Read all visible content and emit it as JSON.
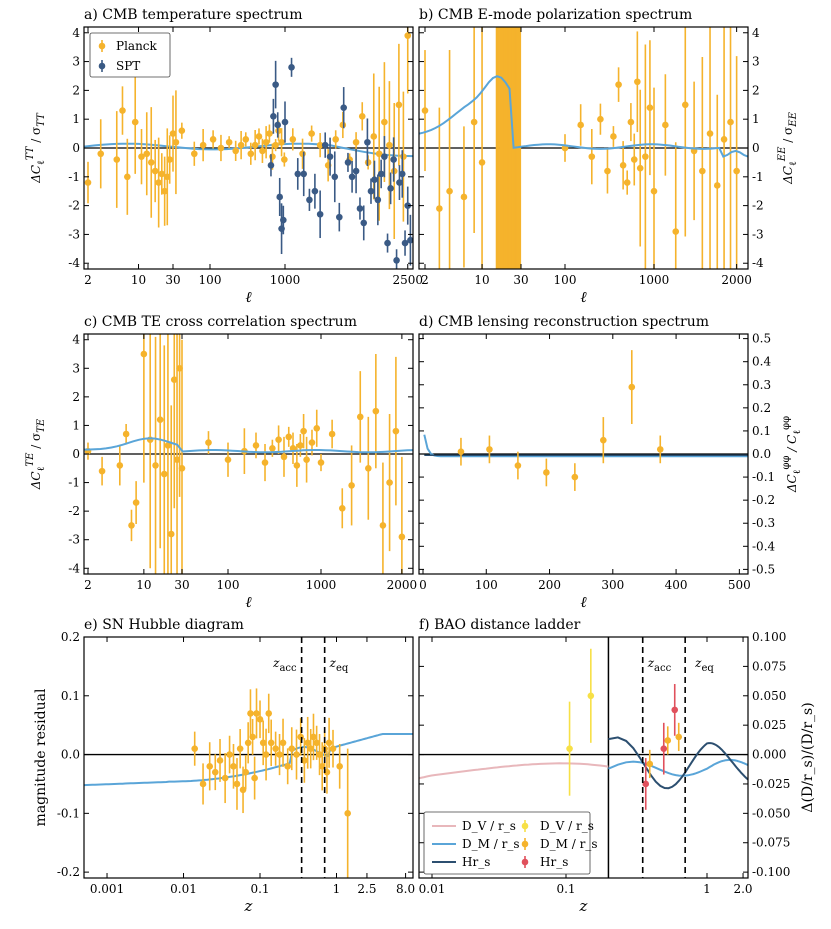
{
  "colors": {
    "planck": "#f5b32c",
    "spt": "#3a5a85",
    "model": "#5aa5d8",
    "dark": "#2c4f70",
    "dv": "#e8b7bb",
    "dvpt": "#f7e046",
    "hrpt": "#e0505c"
  },
  "chart_data": [
    {
      "id": "a",
      "type": "scatter",
      "title": "a) CMB temperature spectrum",
      "xlabel": "ℓ",
      "ylabel": "ΔC_ℓ^TT / σ_TT",
      "xticks": [
        "2",
        "10",
        "30",
        "100",
        "1000",
        "2500"
      ],
      "yticks": [
        "4",
        "3",
        "2",
        "1",
        "0",
        "-1",
        "-2",
        "-3",
        "-4"
      ],
      "ylim": [
        -4.2,
        4.2
      ],
      "legend": [
        "Planck",
        "SPT"
      ],
      "series": [
        {
          "name": "Planck",
          "x": [
            2,
            3,
            5,
            6,
            7,
            9,
            11,
            13,
            15,
            17,
            19,
            21,
            23,
            25,
            27,
            30,
            33,
            40,
            60,
            80,
            110,
            140,
            180,
            220,
            260,
            300,
            350,
            400,
            450,
            500,
            560,
            620,
            680,
            750,
            820,
            900,
            980,
            1060,
            1140,
            1220,
            1300,
            1380,
            1460,
            1540,
            1620,
            1700,
            1780,
            1860,
            1940,
            2020,
            2100,
            2180,
            2260,
            2340,
            2420,
            2500
          ],
          "y": [
            -1.2,
            -0.2,
            -0.4,
            1.3,
            -1.0,
            0.9,
            -0.3,
            -0.2,
            -0.5,
            -0.8,
            -1.2,
            -0.9,
            -1.5,
            -1.0,
            -0.4,
            0.5,
            0.2,
            0.6,
            -0.2,
            0.1,
            0.3,
            0.0,
            0.2,
            -0.1,
            0.1,
            0.3,
            -0.2,
            0.1,
            0.4,
            -0.1,
            0.2,
            0.5,
            -0.3,
            0.1,
            0.6,
            0.2,
            -0.4,
            0.3,
            -0.2,
            0.5,
            0.1,
            -0.6,
            0.3,
            0.8,
            -0.4,
            0.2,
            1.1,
            -0.5,
            0.4,
            -0.2,
            0.9,
            0.1,
            -0.8,
            1.5,
            -0.3,
            3.9
          ]
        },
        {
          "name": "SPT",
          "x": [
            650,
            700,
            750,
            800,
            850,
            900,
            950,
            1000,
            1050,
            1100,
            1150,
            1200,
            1250,
            1300,
            1350,
            1400,
            1450,
            1500,
            1550,
            1600,
            1650,
            1700,
            1750,
            1800,
            1850,
            1900,
            1950,
            2000,
            2050,
            2100,
            2150,
            2200,
            2250,
            2300,
            2350,
            2400,
            2450,
            2500,
            2550
          ],
          "y": [
            -0.6,
            1.1,
            2.2,
            0.8,
            -1.7,
            -2.8,
            -2.5,
            0.9,
            2.8,
            -0.9,
            -0.9,
            -1.8,
            -1.5,
            -2.3,
            0.1,
            -0.3,
            -1.0,
            -2.4,
            1.4,
            -0.5,
            -1.0,
            -0.8,
            -2.1,
            -2.6,
            0.2,
            -1.5,
            -1.1,
            -1.8,
            -0.9,
            -0.3,
            -3.3,
            -1.4,
            -0.4,
            -3.9,
            -1.2,
            -0.9,
            -3.3,
            -2.0,
            -3.2
          ]
        }
      ]
    },
    {
      "id": "b",
      "type": "scatter",
      "title": "b) CMB E-mode polarization spectrum",
      "xlabel": "ℓ",
      "ylabel": "ΔC_ℓ^EE / σ_EE",
      "xticks": [
        "2",
        "10",
        "30",
        "100",
        "1000",
        "2000"
      ],
      "yticks": [
        "4",
        "3",
        "2",
        "1",
        "0",
        "-1",
        "-2",
        "-3",
        "-4"
      ],
      "ylim": [
        -4.2,
        4.2
      ],
      "series": [
        {
          "name": "Planck",
          "x": [
            2,
            3,
            4,
            6,
            8,
            10,
            100,
            150,
            200,
            250,
            300,
            350,
            400,
            450,
            500,
            550,
            600,
            650,
            700,
            800,
            900,
            1000,
            1100,
            1200,
            1300,
            1400,
            1500,
            1600,
            1700,
            1800,
            1900,
            2000
          ],
          "y": [
            1.3,
            -2.1,
            -1.5,
            -1.7,
            0.9,
            -0.5,
            0.0,
            0.8,
            -0.3,
            1.0,
            -0.8,
            0.4,
            2.2,
            -0.6,
            -1.2,
            0.9,
            -0.4,
            2.3,
            -0.7,
            -0.3,
            1.4,
            -1.5,
            0.8,
            -2.9,
            1.5,
            -0.1,
            -0.8,
            0.5,
            -1.3,
            0.3,
            0.9,
            -0.8
          ]
        }
      ]
    },
    {
      "id": "c",
      "type": "scatter",
      "title": "c) CMB TE cross correlation spectrum",
      "xlabel": "ℓ",
      "ylabel": "ΔC_ℓ^TE / σ_TE",
      "xticks": [
        "2",
        "10",
        "30",
        "100",
        "1000",
        "2000"
      ],
      "yticks": [
        "4",
        "3",
        "2",
        "1",
        "0",
        "-1",
        "-2",
        "-3",
        "-4"
      ],
      "ylim": [
        -4.2,
        4.2
      ],
      "series": [
        {
          "name": "Planck",
          "x": [
            2,
            3,
            5,
            6,
            7,
            8,
            10,
            12,
            14,
            16,
            18,
            20,
            22,
            24,
            26,
            28,
            30,
            60,
            100,
            150,
            200,
            250,
            300,
            350,
            400,
            450,
            500,
            550,
            600,
            650,
            700,
            800,
            900,
            1000,
            1100,
            1200,
            1300,
            1400,
            1500,
            1600,
            1700,
            1800,
            1900,
            2000
          ],
          "y": [
            0.1,
            -0.6,
            -0.4,
            0.7,
            -2.5,
            -1.7,
            3.5,
            0.5,
            -0.4,
            1.2,
            -0.7,
            0.3,
            -2.8,
            2.6,
            -0.2,
            3.0,
            -0.5,
            0.4,
            -0.2,
            0.1,
            0.3,
            -0.3,
            0.2,
            0.5,
            -0.1,
            0.6,
            0.2,
            -0.4,
            0.3,
            0.8,
            -0.2,
            0.4,
            0.9,
            -0.3,
            0.7,
            -1.9,
            -1.1,
            1.3,
            -0.5,
            1.5,
            -2.5,
            -1.0,
            0.8,
            -2.9
          ]
        }
      ]
    },
    {
      "id": "d",
      "type": "scatter",
      "title": "d) CMB lensing reconstruction spectrum",
      "xlabel": "ℓ",
      "ylabel": "ΔC_ℓ^φφ / C_ℓ^φφ",
      "xticks": [
        "0",
        "100",
        "200",
        "300",
        "400",
        "500"
      ],
      "yticks": [
        "0.5",
        "0.4",
        "0.3",
        "0.2",
        "0.1",
        "0.0",
        "-0.1",
        "-0.2",
        "-0.3",
        "-0.4",
        "-0.5"
      ],
      "xlim": [
        0,
        520
      ],
      "ylim": [
        -0.52,
        0.52
      ],
      "series": [
        {
          "name": "Planck",
          "x": [
            60,
            105,
            150,
            195,
            240,
            285,
            330,
            375
          ],
          "y": [
            0.01,
            0.02,
            -0.05,
            -0.08,
            -0.1,
            0.06,
            0.29,
            0.02
          ]
        }
      ]
    },
    {
      "id": "e",
      "type": "scatter",
      "title": "e) SN Hubble diagram",
      "xlabel": "z",
      "ylabel": "magnitude residual",
      "xticks": [
        "0.001",
        "0.01",
        "0.1",
        "1",
        "2.5",
        "8.0"
      ],
      "yticks": [
        "0.2",
        "0.1",
        "0.0",
        "-0.1",
        "-0.2"
      ],
      "ylim": [
        -0.21,
        0.2
      ],
      "vlines": [
        {
          "z": 0.35,
          "label": "z_acc"
        },
        {
          "z": 0.7,
          "label": "z_eq"
        }
      ],
      "series": [
        {
          "name": "SN",
          "x": [
            0.014,
            0.018,
            0.022,
            0.026,
            0.03,
            0.035,
            0.04,
            0.045,
            0.05,
            0.055,
            0.06,
            0.065,
            0.07,
            0.075,
            0.08,
            0.085,
            0.09,
            0.1,
            0.11,
            0.12,
            0.13,
            0.14,
            0.16,
            0.18,
            0.2,
            0.23,
            0.26,
            0.3,
            0.34,
            0.38,
            0.42,
            0.46,
            0.5,
            0.55,
            0.6,
            0.65,
            0.7,
            0.75,
            0.8,
            0.9,
            1.1,
            1.4
          ],
          "y": [
            0.01,
            -0.05,
            -0.02,
            -0.03,
            -0.01,
            -0.04,
            0.0,
            -0.02,
            -0.05,
            0.01,
            -0.06,
            -0.03,
            0.02,
            0.07,
            0.03,
            -0.04,
            0.07,
            0.06,
            0.02,
            0.0,
            0.07,
            0.02,
            0.01,
            0.0,
            0.02,
            -0.02,
            0.01,
            0.0,
            0.03,
            -0.01,
            0.02,
            0.01,
            0.03,
            0.02,
            0.0,
            -0.02,
            0.01,
            -0.03,
            0.02,
            0.01,
            -0.02,
            -0.1
          ]
        }
      ]
    },
    {
      "id": "f",
      "type": "scatter",
      "title": "f) BAO distance ladder",
      "xlabel": "z",
      "ylabel": "Δ(D/r_s)/(D/r_s)",
      "xticks": [
        "0.01",
        "0.1",
        "1",
        "2.0"
      ],
      "yticks": [
        "0.100",
        "0.075",
        "0.050",
        "0.025",
        "0.000",
        "-0.025",
        "-0.050",
        "-0.075",
        "-0.100"
      ],
      "ylim": [
        -0.105,
        0.1
      ],
      "vlines": [
        {
          "z": 0.35,
          "label": "z_acc"
        },
        {
          "z": 0.7,
          "label": "z_eq"
        }
      ],
      "legend": [
        "D_V / r_s",
        "D_M / r_s",
        "Hr_s",
        "D_V / r_s",
        "D_M / r_s",
        "Hr_s"
      ],
      "series": [
        {
          "name": "D_V / r_s",
          "x": [
            0.106,
            0.15
          ],
          "y": [
            0.005,
            0.05
          ]
        },
        {
          "name": "D_M / r_s",
          "x": [
            0.38,
            0.51,
            0.61
          ],
          "y": [
            -0.008,
            0.012,
            0.015
          ]
        },
        {
          "name": "Hr_s",
          "x": [
            0.38,
            0.51,
            0.61
          ],
          "y": [
            -0.025,
            0.005,
            0.038
          ]
        }
      ]
    }
  ]
}
